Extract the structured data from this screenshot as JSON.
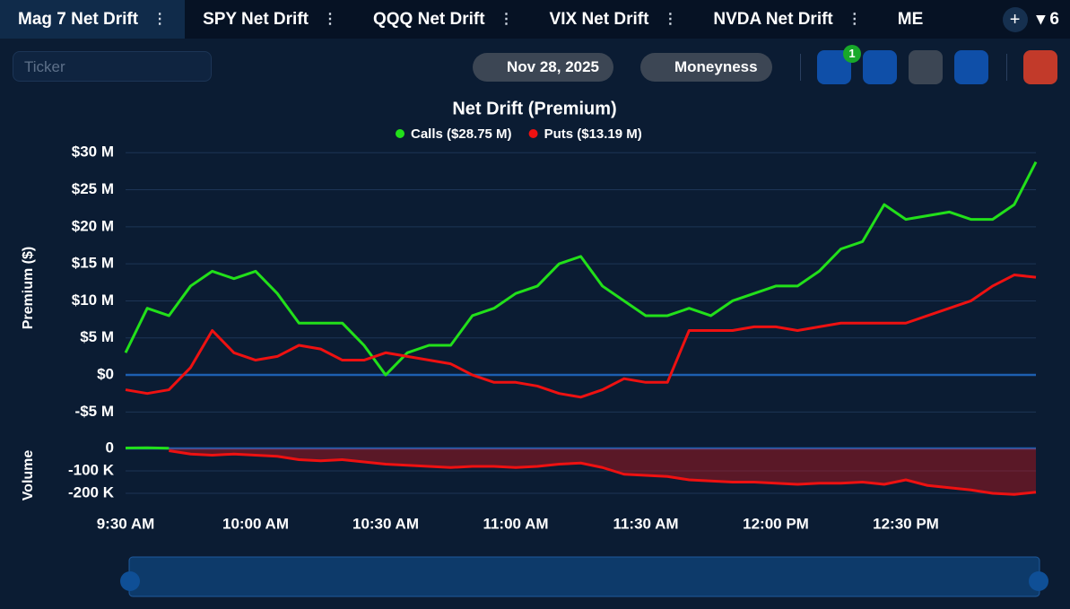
{
  "tabs": [
    "Mag 7 Net Drift",
    "SPY Net Drift",
    "QQQ Net Drift",
    "VIX Net Drift",
    "NVDA Net Drift",
    "ME"
  ],
  "tab_count": "6",
  "toolbar": {
    "ticker_placeholder": "Ticker",
    "date": "Nov 28, 2025",
    "moneyness": "Moneyness",
    "filter_badge": "1"
  },
  "chart_data": [
    {
      "type": "line",
      "title": "Net Drift (Premium)",
      "y_label": "Premium ($)",
      "x": [
        "9:30 AM",
        "9:35 AM",
        "9:40 AM",
        "9:45 AM",
        "9:50 AM",
        "9:55 AM",
        "10:00 AM",
        "10:05 AM",
        "10:10 AM",
        "10:15 AM",
        "10:20 AM",
        "10:25 AM",
        "10:30 AM",
        "10:35 AM",
        "10:40 AM",
        "10:45 AM",
        "10:50 AM",
        "10:55 AM",
        "11:00 AM",
        "11:05 AM",
        "11:10 AM",
        "11:15 AM",
        "11:20 AM",
        "11:25 AM",
        "11:30 AM",
        "11:35 AM",
        "11:40 AM",
        "11:45 AM",
        "11:50 AM",
        "11:55 AM",
        "12:00 PM",
        "12:05 PM",
        "12:10 PM",
        "12:15 PM",
        "12:20 PM",
        "12:25 PM",
        "12:30 PM",
        "12:35 PM",
        "12:40 PM",
        "12:45 PM",
        "12:50 PM",
        "12:55 PM",
        "1:00 PM"
      ],
      "xticks": [
        "9:30 AM",
        "10:00 AM",
        "10:30 AM",
        "11:00 AM",
        "11:30 AM",
        "12:00 PM",
        "12:30 PM"
      ],
      "ylim": [
        -7.5,
        31
      ],
      "yticks": [
        {
          "value": -5,
          "label": "-$5 M"
        },
        {
          "value": 0,
          "label": "$0"
        },
        {
          "value": 5,
          "label": "$5 M"
        },
        {
          "value": 10,
          "label": "$10 M"
        },
        {
          "value": 15,
          "label": "$15 M"
        },
        {
          "value": 20,
          "label": "$20 M"
        },
        {
          "value": 25,
          "label": "$25 M"
        },
        {
          "value": 30,
          "label": "$30 M"
        }
      ],
      "grid": true,
      "legend": "top",
      "series": [
        {
          "name": "Calls ($28.75 M)",
          "color": "#22e01a",
          "values": [
            3,
            9,
            8,
            12,
            14,
            13,
            14,
            11,
            7,
            7,
            7,
            4,
            0,
            3,
            4,
            4,
            8,
            9,
            11,
            12,
            15,
            16,
            12,
            10,
            8,
            8,
            9,
            8,
            10,
            11,
            12,
            12,
            14,
            17,
            18,
            23,
            21,
            21.5,
            22,
            21,
            21,
            23,
            28.75
          ]
        },
        {
          "name": "Puts ($13.19 M)",
          "color": "#ee1111",
          "values": [
            -2,
            -2.5,
            -2,
            1,
            6,
            3,
            2,
            2.5,
            4,
            3.5,
            2,
            2,
            3,
            2.5,
            2,
            1.5,
            0,
            -1,
            -1,
            -1.5,
            -2.5,
            -3,
            -2,
            -0.5,
            -1,
            -1,
            6,
            6,
            6,
            6.5,
            6.5,
            6,
            6.5,
            7,
            7,
            7,
            7,
            8,
            9,
            10,
            12,
            13.5,
            13.19
          ]
        }
      ]
    },
    {
      "type": "area",
      "y_label": "Volume",
      "ylim": [
        -260,
        20
      ],
      "yticks": [
        {
          "value": -200,
          "label": "-200 K"
        },
        {
          "value": -100,
          "label": "-100 K"
        },
        0
      ],
      "grid": true,
      "series": [
        {
          "color": "#22e01a",
          "values": [
            2,
            3,
            1,
            null,
            null,
            null,
            null,
            null,
            null,
            null,
            null,
            null,
            null,
            null,
            null,
            null,
            null,
            null,
            null,
            null,
            null,
            null,
            null,
            null,
            null,
            null,
            null,
            null,
            null,
            null,
            null,
            null,
            null,
            null,
            null,
            null,
            null,
            null,
            null,
            null,
            null,
            null,
            null
          ]
        },
        {
          "color": "#ee1111",
          "values": [
            null,
            null,
            -10,
            -25,
            -30,
            -25,
            -30,
            -35,
            -50,
            -55,
            -50,
            -60,
            -70,
            -75,
            -80,
            -85,
            -80,
            -80,
            -85,
            -80,
            -70,
            -65,
            -85,
            -115,
            -120,
            -125,
            -140,
            -145,
            -150,
            -150,
            -155,
            -160,
            -155,
            -155,
            -150,
            -160,
            -140,
            -165,
            -175,
            -185,
            -200,
            -205,
            -195
          ]
        }
      ]
    }
  ]
}
